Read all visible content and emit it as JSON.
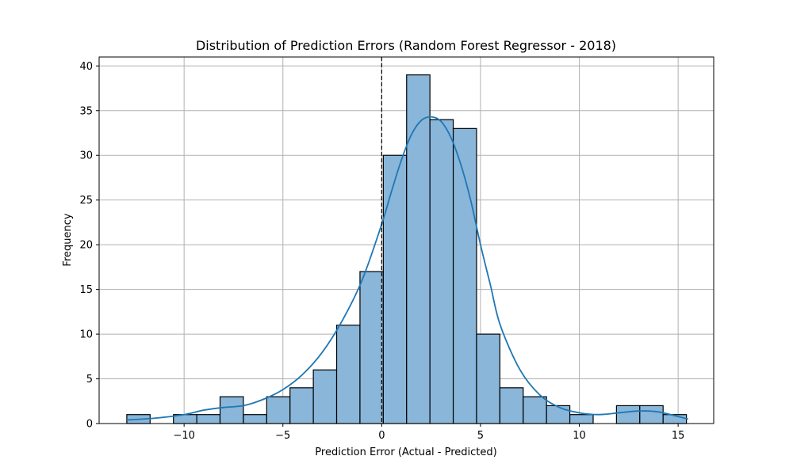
{
  "chart_data": {
    "type": "bar",
    "title": "Distribution of Prediction Errors (Random Forest Regressor - 2018)",
    "xlabel": "Prediction Error (Actual - Predicted)",
    "ylabel": "Frequency",
    "xlim": [
      -14.3,
      16.8
    ],
    "ylim": [
      0,
      41
    ],
    "xticks": [
      -10,
      -5,
      0,
      5,
      10,
      15
    ],
    "xtick_labels": [
      "−10",
      "−5",
      "0",
      "5",
      "10",
      "15"
    ],
    "yticks": [
      0,
      5,
      10,
      15,
      20,
      25,
      30,
      35,
      40
    ],
    "grid": true,
    "bins": {
      "start": -12.9,
      "width": 1.18,
      "counts": [
        1,
        0,
        1,
        1,
        3,
        1,
        3,
        4,
        6,
        11,
        17,
        30,
        39,
        34,
        33,
        10,
        4,
        3,
        2,
        1,
        0,
        2,
        2,
        1
      ]
    },
    "kde": {
      "x": [
        -12.9,
        -11.5,
        -10,
        -9,
        -8,
        -7,
        -6,
        -5,
        -4,
        -3,
        -2,
        -1,
        0,
        0.5,
        1,
        1.5,
        2,
        2.5,
        3,
        3.5,
        4,
        4.5,
        5,
        5.5,
        6,
        7,
        8,
        9,
        10,
        11,
        12,
        13,
        14,
        15.5
      ],
      "y": [
        0.4,
        0.6,
        1.0,
        1.5,
        1.8,
        2.0,
        2.7,
        3.8,
        5.5,
        8.0,
        11.5,
        16.0,
        22.3,
        26.0,
        29.5,
        32.3,
        33.9,
        34.3,
        33.8,
        32.0,
        29.0,
        25.0,
        20.0,
        15.5,
        11.0,
        6.0,
        3.2,
        1.8,
        1.2,
        1.0,
        1.2,
        1.4,
        1.3,
        0.5
      ]
    },
    "reference_line_x": 0,
    "colors": {
      "bar_fill": "#89b6d9",
      "kde": "#1f77b4"
    }
  }
}
